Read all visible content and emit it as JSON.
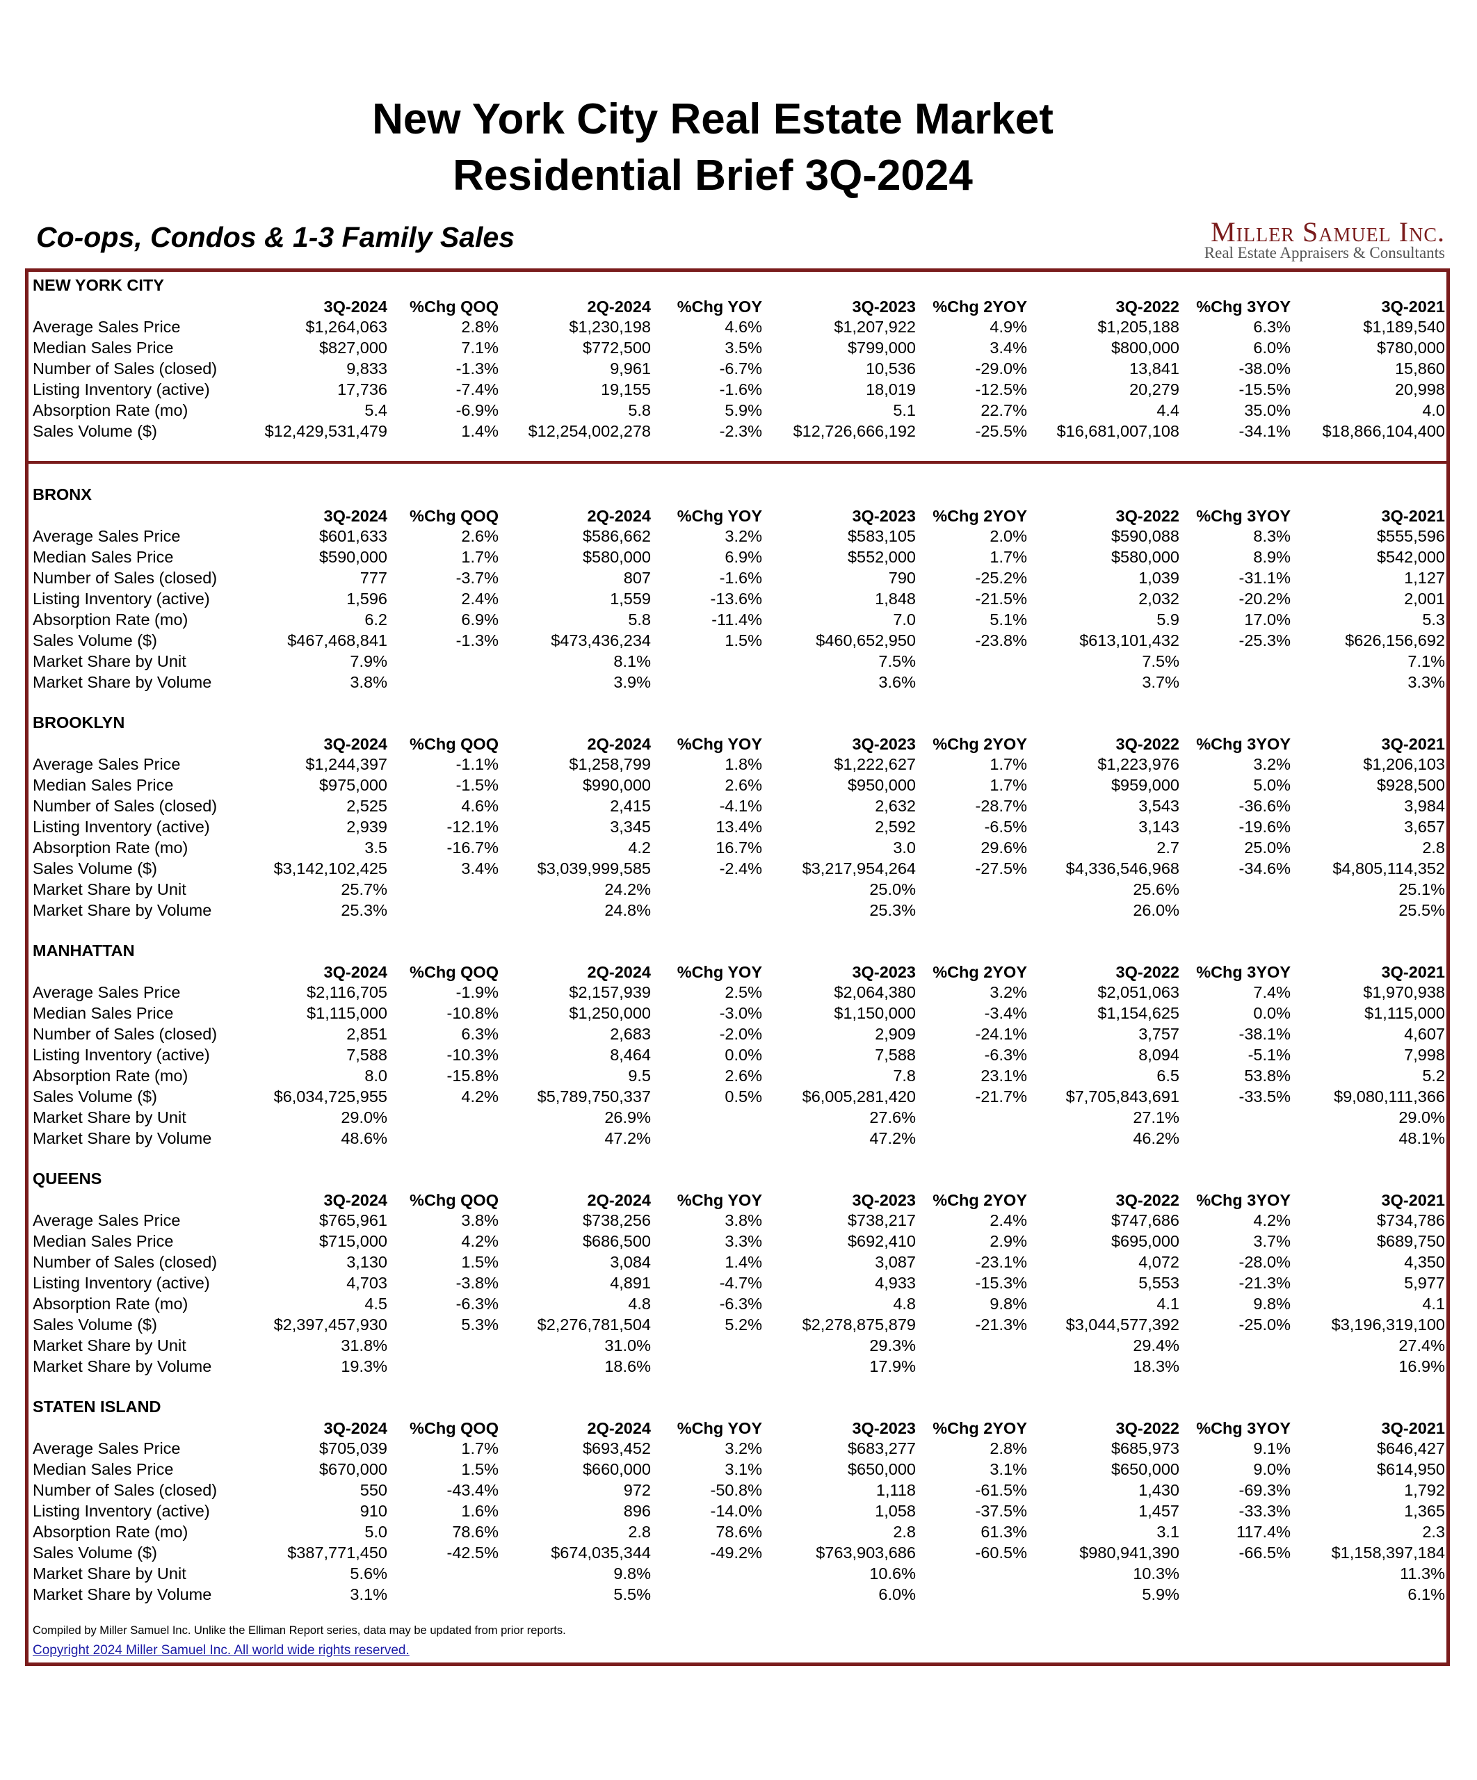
{
  "header": {
    "title": [
      "New York City Real Estate Market",
      "Residential Brief 3Q-2024"
    ],
    "subtitle": "Co-ops, Condos & 1-3 Family Sales",
    "logo": {
      "name": "Miller Samuel Inc.",
      "tagline": "Real Estate Appraisers & Consultants"
    }
  },
  "columns": [
    "3Q-2024",
    "%Chg QOQ",
    "2Q-2024",
    "%Chg YOY",
    "3Q-2023",
    "%Chg 2YOY",
    "3Q-2022",
    "%Chg 3YOY",
    "3Q-2021"
  ],
  "sections": [
    {
      "name": "NEW YORK CITY",
      "rows": [
        [
          "Average Sales Price",
          "$1,264,063",
          "2.8%",
          "$1,230,198",
          "4.6%",
          "$1,207,922",
          "4.9%",
          "$1,205,188",
          "6.3%",
          "$1,189,540"
        ],
        [
          "Median Sales Price",
          "$827,000",
          "7.1%",
          "$772,500",
          "3.5%",
          "$799,000",
          "3.4%",
          "$800,000",
          "6.0%",
          "$780,000"
        ],
        [
          "Number of Sales (closed)",
          "9,833",
          "-1.3%",
          "9,961",
          "-6.7%",
          "10,536",
          "-29.0%",
          "13,841",
          "-38.0%",
          "15,860"
        ],
        [
          "Listing Inventory (active)",
          "17,736",
          "-7.4%",
          "19,155",
          "-1.6%",
          "18,019",
          "-12.5%",
          "20,279",
          "-15.5%",
          "20,998"
        ],
        [
          "Absorption Rate (mo)",
          "5.4",
          "-6.9%",
          "5.8",
          "5.9%",
          "5.1",
          "22.7%",
          "4.4",
          "35.0%",
          "4.0"
        ],
        [
          "Sales Volume ($)",
          "$12,429,531,479",
          "1.4%",
          "$12,254,002,278",
          "-2.3%",
          "$12,726,666,192",
          "-25.5%",
          "$16,681,007,108",
          "-34.1%",
          "$18,866,104,400"
        ]
      ]
    },
    {
      "name": "BRONX",
      "rows": [
        [
          "Average Sales Price",
          "$601,633",
          "2.6%",
          "$586,662",
          "3.2%",
          "$583,105",
          "2.0%",
          "$590,088",
          "8.3%",
          "$555,596"
        ],
        [
          "Median Sales Price",
          "$590,000",
          "1.7%",
          "$580,000",
          "6.9%",
          "$552,000",
          "1.7%",
          "$580,000",
          "8.9%",
          "$542,000"
        ],
        [
          "Number of Sales (closed)",
          "777",
          "-3.7%",
          "807",
          "-1.6%",
          "790",
          "-25.2%",
          "1,039",
          "-31.1%",
          "1,127"
        ],
        [
          "Listing Inventory (active)",
          "1,596",
          "2.4%",
          "1,559",
          "-13.6%",
          "1,848",
          "-21.5%",
          "2,032",
          "-20.2%",
          "2,001"
        ],
        [
          "Absorption Rate (mo)",
          "6.2",
          "6.9%",
          "5.8",
          "-11.4%",
          "7.0",
          "5.1%",
          "5.9",
          "17.0%",
          "5.3"
        ],
        [
          "Sales Volume ($)",
          "$467,468,841",
          "-1.3%",
          "$473,436,234",
          "1.5%",
          "$460,652,950",
          "-23.8%",
          "$613,101,432",
          "-25.3%",
          "$626,156,692"
        ],
        [
          "Market Share by Unit",
          "7.9%",
          null,
          "8.1%",
          null,
          "7.5%",
          null,
          "7.5%",
          null,
          "7.1%"
        ],
        [
          "Market Share by Volume",
          "3.8%",
          null,
          "3.9%",
          null,
          "3.6%",
          null,
          "3.7%",
          null,
          "3.3%"
        ]
      ]
    },
    {
      "name": "BROOKLYN",
      "rows": [
        [
          "Average Sales Price",
          "$1,244,397",
          "-1.1%",
          "$1,258,799",
          "1.8%",
          "$1,222,627",
          "1.7%",
          "$1,223,976",
          "3.2%",
          "$1,206,103"
        ],
        [
          "Median Sales Price",
          "$975,000",
          "-1.5%",
          "$990,000",
          "2.6%",
          "$950,000",
          "1.7%",
          "$959,000",
          "5.0%",
          "$928,500"
        ],
        [
          "Number of Sales (closed)",
          "2,525",
          "4.6%",
          "2,415",
          "-4.1%",
          "2,632",
          "-28.7%",
          "3,543",
          "-36.6%",
          "3,984"
        ],
        [
          "Listing Inventory (active)",
          "2,939",
          "-12.1%",
          "3,345",
          "13.4%",
          "2,592",
          "-6.5%",
          "3,143",
          "-19.6%",
          "3,657"
        ],
        [
          "Absorption Rate (mo)",
          "3.5",
          "-16.7%",
          "4.2",
          "16.7%",
          "3.0",
          "29.6%",
          "2.7",
          "25.0%",
          "2.8"
        ],
        [
          "Sales Volume ($)",
          "$3,142,102,425",
          "3.4%",
          "$3,039,999,585",
          "-2.4%",
          "$3,217,954,264",
          "-27.5%",
          "$4,336,546,968",
          "-34.6%",
          "$4,805,114,352"
        ],
        [
          "Market Share by Unit",
          "25.7%",
          null,
          "24.2%",
          null,
          "25.0%",
          null,
          "25.6%",
          null,
          "25.1%"
        ],
        [
          "Market Share by Volume",
          "25.3%",
          null,
          "24.8%",
          null,
          "25.3%",
          null,
          "26.0%",
          null,
          "25.5%"
        ]
      ]
    },
    {
      "name": "MANHATTAN",
      "rows": [
        [
          "Average Sales Price",
          "$2,116,705",
          "-1.9%",
          "$2,157,939",
          "2.5%",
          "$2,064,380",
          "3.2%",
          "$2,051,063",
          "7.4%",
          "$1,970,938"
        ],
        [
          "Median Sales Price",
          "$1,115,000",
          "-10.8%",
          "$1,250,000",
          "-3.0%",
          "$1,150,000",
          "-3.4%",
          "$1,154,625",
          "0.0%",
          "$1,115,000"
        ],
        [
          "Number of Sales (closed)",
          "2,851",
          "6.3%",
          "2,683",
          "-2.0%",
          "2,909",
          "-24.1%",
          "3,757",
          "-38.1%",
          "4,607"
        ],
        [
          "Listing Inventory (active)",
          "7,588",
          "-10.3%",
          "8,464",
          "0.0%",
          "7,588",
          "-6.3%",
          "8,094",
          "-5.1%",
          "7,998"
        ],
        [
          "Absorption Rate (mo)",
          "8.0",
          "-15.8%",
          "9.5",
          "2.6%",
          "7.8",
          "23.1%",
          "6.5",
          "53.8%",
          "5.2"
        ],
        [
          "Sales Volume ($)",
          "$6,034,725,955",
          "4.2%",
          "$5,789,750,337",
          "0.5%",
          "$6,005,281,420",
          "-21.7%",
          "$7,705,843,691",
          "-33.5%",
          "$9,080,111,366"
        ],
        [
          "Market Share by Unit",
          "29.0%",
          null,
          "26.9%",
          null,
          "27.6%",
          null,
          "27.1%",
          null,
          "29.0%"
        ],
        [
          "Market Share by Volume",
          "48.6%",
          null,
          "47.2%",
          null,
          "47.2%",
          null,
          "46.2%",
          null,
          "48.1%"
        ]
      ]
    },
    {
      "name": "QUEENS",
      "rows": [
        [
          "Average Sales Price",
          "$765,961",
          "3.8%",
          "$738,256",
          "3.8%",
          "$738,217",
          "2.4%",
          "$747,686",
          "4.2%",
          "$734,786"
        ],
        [
          "Median Sales Price",
          "$715,000",
          "4.2%",
          "$686,500",
          "3.3%",
          "$692,410",
          "2.9%",
          "$695,000",
          "3.7%",
          "$689,750"
        ],
        [
          "Number of Sales (closed)",
          "3,130",
          "1.5%",
          "3,084",
          "1.4%",
          "3,087",
          "-23.1%",
          "4,072",
          "-28.0%",
          "4,350"
        ],
        [
          "Listing Inventory (active)",
          "4,703",
          "-3.8%",
          "4,891",
          "-4.7%",
          "4,933",
          "-15.3%",
          "5,553",
          "-21.3%",
          "5,977"
        ],
        [
          "Absorption Rate (mo)",
          "4.5",
          "-6.3%",
          "4.8",
          "-6.3%",
          "4.8",
          "9.8%",
          "4.1",
          "9.8%",
          "4.1"
        ],
        [
          "Sales Volume ($)",
          "$2,397,457,930",
          "5.3%",
          "$2,276,781,504",
          "5.2%",
          "$2,278,875,879",
          "-21.3%",
          "$3,044,577,392",
          "-25.0%",
          "$3,196,319,100"
        ],
        [
          "Market Share by Unit",
          "31.8%",
          null,
          "31.0%",
          null,
          "29.3%",
          null,
          "29.4%",
          null,
          "27.4%"
        ],
        [
          "Market Share by Volume",
          "19.3%",
          null,
          "18.6%",
          null,
          "17.9%",
          null,
          "18.3%",
          null,
          "16.9%"
        ]
      ]
    },
    {
      "name": "STATEN ISLAND",
      "rows": [
        [
          "Average Sales Price",
          "$705,039",
          "1.7%",
          "$693,452",
          "3.2%",
          "$683,277",
          "2.8%",
          "$685,973",
          "9.1%",
          "$646,427"
        ],
        [
          "Median Sales Price",
          "$670,000",
          "1.5%",
          "$660,000",
          "3.1%",
          "$650,000",
          "3.1%",
          "$650,000",
          "9.0%",
          "$614,950"
        ],
        [
          "Number of Sales (closed)",
          "550",
          "-43.4%",
          "972",
          "-50.8%",
          "1,118",
          "-61.5%",
          "1,430",
          "-69.3%",
          "1,792"
        ],
        [
          "Listing Inventory (active)",
          "910",
          "1.6%",
          "896",
          "-14.0%",
          "1,058",
          "-37.5%",
          "1,457",
          "-33.3%",
          "1,365"
        ],
        [
          "Absorption Rate (mo)",
          "5.0",
          "78.6%",
          "2.8",
          "78.6%",
          "2.8",
          "61.3%",
          "3.1",
          "117.4%",
          "2.3"
        ],
        [
          "Sales Volume ($)",
          "$387,771,450",
          "-42.5%",
          "$674,035,344",
          "-49.2%",
          "$763,903,686",
          "-60.5%",
          "$980,941,390",
          "-66.5%",
          "$1,158,397,184"
        ],
        [
          "Market Share by Unit",
          "5.6%",
          null,
          "9.8%",
          null,
          "10.6%",
          null,
          "10.3%",
          null,
          "11.3%"
        ],
        [
          "Market Share by Volume",
          "3.1%",
          null,
          "5.5%",
          null,
          "6.0%",
          null,
          "5.9%",
          null,
          "6.1%"
        ]
      ]
    }
  ],
  "footer": {
    "note": "Compiled by Miller Samuel Inc. Unlike the Elliman Report series, data may be updated from prior reports.",
    "copyright": "Copyright 2024 Miller Samuel Inc. All world wide rights reserved."
  }
}
